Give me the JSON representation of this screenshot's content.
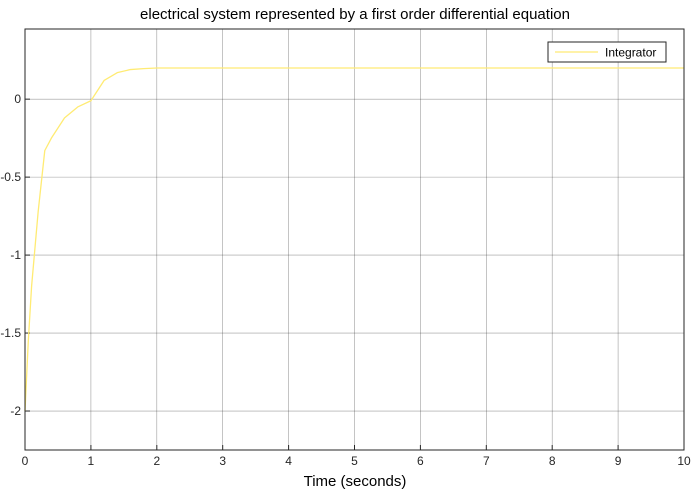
{
  "chart_data": {
    "type": "line",
    "title": "electrical system represented by a first order differential equation",
    "xlabel": "Time (seconds)",
    "ylabel": "",
    "xlim": [
      0,
      10
    ],
    "ylim": [
      -2.25,
      0.45
    ],
    "xticks": [
      0,
      1,
      2,
      3,
      4,
      5,
      6,
      7,
      8,
      9,
      10
    ],
    "yticks": [
      -2,
      -1.5,
      -1,
      -0.5,
      0
    ],
    "grid": true,
    "legend_position": "top-right",
    "colors": {
      "series": "#ffeb73",
      "axes_bg": "#ffffff",
      "grid": "#262626"
    },
    "series": [
      {
        "name": "Integrator",
        "x": [
          0,
          0.05,
          0.1,
          0.2,
          0.3,
          0.4,
          0.6,
          0.8,
          1.0,
          1.2,
          1.4,
          1.6,
          1.8,
          2.0,
          2.5,
          3,
          4,
          5,
          6,
          7,
          8,
          9,
          10
        ],
        "y": [
          -2.0,
          -1.55,
          -1.2,
          -0.72,
          -0.33,
          -0.25,
          -0.12,
          -0.05,
          -0.01,
          0.12,
          0.17,
          0.19,
          0.196,
          0.2,
          0.2,
          0.2,
          0.2,
          0.2,
          0.2,
          0.2,
          0.2,
          0.2,
          0.2
        ]
      }
    ]
  }
}
